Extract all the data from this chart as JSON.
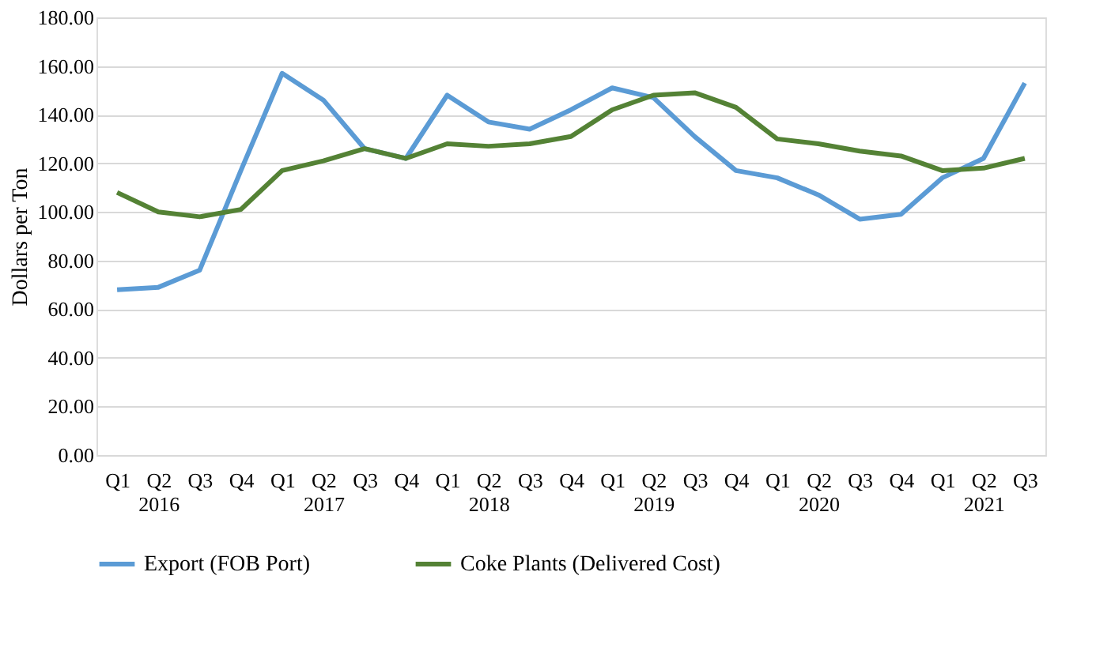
{
  "chart_data": {
    "type": "line",
    "ylabel": "Dollars per Ton",
    "categories": [
      "Q1",
      "Q2 2016",
      "Q3",
      "Q4",
      "Q1",
      "Q2 2017",
      "Q3",
      "Q4",
      "Q1",
      "Q2 2018",
      "Q3",
      "Q4",
      "Q1",
      "Q2 2019",
      "Q3",
      "Q4",
      "Q1",
      "Q2 2020",
      "Q3",
      "Q4",
      "Q1",
      "Q2 2021",
      "Q3"
    ],
    "series": [
      {
        "name": "Export (FOB Port)",
        "color": "#5b9bd5",
        "values": [
          68,
          69,
          76,
          117,
          157,
          146,
          126,
          122,
          148,
          137,
          134,
          142,
          151,
          147,
          131,
          117,
          114,
          107,
          97,
          99,
          114,
          122,
          153
        ]
      },
      {
        "name": "Coke Plants (Delivered Cost)",
        "color": "#548235",
        "values": [
          108,
          100,
          98,
          101,
          117,
          121,
          126,
          122,
          128,
          127,
          128,
          131,
          142,
          148,
          149,
          143,
          130,
          128,
          125,
          123,
          117,
          118,
          122
        ]
      }
    ],
    "ylim": [
      0,
      180
    ],
    "yticks": [
      {
        "value": 0,
        "label": "0.00"
      },
      {
        "value": 20,
        "label": "20.00"
      },
      {
        "value": 40,
        "label": "40.00"
      },
      {
        "value": 60,
        "label": "60.00"
      },
      {
        "value": 80,
        "label": "80.00"
      },
      {
        "value": 100,
        "label": "100.00"
      },
      {
        "value": 120,
        "label": "120.00"
      },
      {
        "value": 140,
        "label": "140.00"
      },
      {
        "value": 160,
        "label": "160.00"
      },
      {
        "value": 180,
        "label": "180.00"
      }
    ],
    "grid": "y",
    "legend": "bottom",
    "marker": "none",
    "line_style": "solid"
  }
}
